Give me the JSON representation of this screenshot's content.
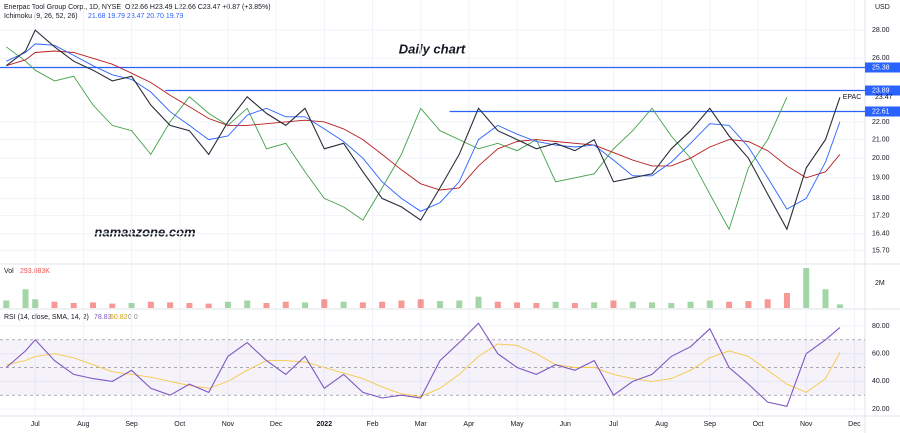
{
  "chart_data": [
    {
      "type": "line",
      "title": "Enerpac Tool Group Corp., 1D, NYSE",
      "ohlc_legend": "O22.66 H23.49 L22.66 C23.47 +0.87 (+3.85%)",
      "indicator": "Ichimoku (9, 26, 52, 26)",
      "indicator_values": "21.68 19.79 23.47 20.70 19.79",
      "annotation": "Daily chart",
      "watermark": "namaazone.com",
      "symbol": "EPAC",
      "currency": "USD",
      "log_scale": true,
      "grid": true,
      "x": [
        -0.6,
        -0.2,
        0,
        0.4,
        0.8,
        1.2,
        1.6,
        2.0,
        2.4,
        2.8,
        3.2,
        3.6,
        4.0,
        4.4,
        4.8,
        5.2,
        5.6,
        6.0,
        6.4,
        6.8,
        7.2,
        7.6,
        8.0,
        8.4,
        8.8,
        9.2,
        9.6,
        10.0,
        10.4,
        10.8,
        11.2,
        11.6,
        12.0,
        12.4,
        12.8,
        13.2,
        13.6,
        14.0,
        14.4,
        14.8,
        15.2,
        15.6,
        16.0,
        16.4,
        16.7
      ],
      "xlim": [
        -0.73,
        17.22
      ],
      "xticks": [
        {
          "value": 0,
          "label": "Jul"
        },
        {
          "value": 1,
          "label": "Aug"
        },
        {
          "value": 2,
          "label": "Sep"
        },
        {
          "value": 3,
          "label": "Oct"
        },
        {
          "value": 4,
          "label": "Nov"
        },
        {
          "value": 5,
          "label": "Dec"
        },
        {
          "value": 6,
          "label": "2022"
        },
        {
          "value": 7,
          "label": "Feb"
        },
        {
          "value": 8,
          "label": "Mar"
        },
        {
          "value": 9,
          "label": "Apr"
        },
        {
          "value": 10,
          "label": "May"
        },
        {
          "value": 11,
          "label": "Jun"
        },
        {
          "value": 12,
          "label": "Jul"
        },
        {
          "value": 13,
          "label": "Aug"
        },
        {
          "value": 14,
          "label": "Sep"
        },
        {
          "value": 15,
          "label": "Oct"
        },
        {
          "value": 16,
          "label": "Nov"
        },
        {
          "value": 17,
          "label": "Dec"
        }
      ],
      "ylim": [
        15.23,
        30.3
      ],
      "yticks": [
        {
          "value": 28,
          "label": "28.00"
        },
        {
          "value": 26,
          "label": "26.00"
        },
        {
          "value": 22,
          "label": "22.00"
        },
        {
          "value": 21,
          "label": "21.00"
        },
        {
          "value": 20,
          "label": "20.00"
        },
        {
          "value": 19,
          "label": "19.00"
        },
        {
          "value": 18,
          "label": "18.00"
        },
        {
          "value": 17.2,
          "label": "17.20"
        },
        {
          "value": 16.4,
          "label": "16.40"
        },
        {
          "value": 15.7,
          "label": "15.70"
        }
      ],
      "series": [
        {
          "name": "Close",
          "color": "#2a2e39",
          "values": [
            25.5,
            26.5,
            28.0,
            26.8,
            25.8,
            25.2,
            24.5,
            24.8,
            23.0,
            21.8,
            21.5,
            20.2,
            22.0,
            23.5,
            22.5,
            21.8,
            22.8,
            20.5,
            20.8,
            19.3,
            18.0,
            17.6,
            17.0,
            18.5,
            20.2,
            22.8,
            21.5,
            21.0,
            20.5,
            20.8,
            20.4,
            21.0,
            18.8,
            19.0,
            19.2,
            20.5,
            21.5,
            22.8,
            21.2,
            20.0,
            18.2,
            16.6,
            19.5,
            21.0,
            23.47
          ]
        },
        {
          "name": "Conversion Line",
          "color": "#2962ff",
          "values": [
            25.8,
            26.4,
            27.0,
            26.9,
            26.2,
            25.5,
            24.9,
            24.6,
            23.8,
            22.6,
            21.8,
            21.0,
            21.2,
            22.4,
            22.8,
            22.3,
            22.3,
            21.6,
            20.9,
            20.0,
            18.8,
            18.0,
            17.4,
            17.8,
            18.8,
            21.0,
            21.8,
            21.3,
            20.9,
            20.7,
            20.6,
            20.7,
            19.9,
            19.1,
            19.1,
            19.8,
            20.8,
            21.9,
            21.8,
            20.6,
            19.0,
            17.5,
            18.0,
            19.8,
            22.0
          ]
        },
        {
          "name": "Base Line",
          "color": "#b71c1c",
          "values": [
            25.5,
            25.9,
            26.4,
            26.5,
            26.4,
            26.0,
            25.6,
            25.0,
            24.4,
            23.6,
            22.9,
            22.2,
            21.8,
            21.8,
            21.9,
            22.0,
            22.1,
            22.0,
            21.6,
            21.0,
            20.2,
            19.4,
            18.7,
            18.4,
            18.5,
            19.6,
            20.5,
            20.9,
            21.0,
            20.9,
            20.8,
            20.7,
            20.3,
            19.9,
            19.6,
            19.6,
            20.0,
            20.6,
            21.0,
            20.9,
            20.4,
            19.6,
            19.0,
            19.3,
            20.2
          ]
        },
        {
          "name": "Lagging Span",
          "color": "#43a047",
          "values": [
            26.8,
            25.8,
            25.2,
            24.5,
            24.8,
            23.0,
            21.8,
            21.5,
            20.2,
            22.0,
            23.5,
            22.5,
            21.8,
            22.8,
            20.5,
            20.8,
            19.3,
            18.0,
            17.6,
            17.0,
            18.5,
            20.2,
            22.8,
            21.5,
            21.0,
            20.5,
            20.8,
            20.4,
            21.0,
            18.8,
            19.0,
            19.2,
            20.5,
            21.5,
            22.8,
            21.2,
            20.0,
            18.2,
            16.6,
            19.5,
            21.0,
            23.47,
            null,
            null,
            null
          ]
        }
      ],
      "levels": [
        {
          "value": 25.38,
          "start": -0.73
        },
        {
          "value": 23.89,
          "start": 2.7
        },
        {
          "value": 22.61,
          "start": 8.6
        }
      ],
      "level_color": "#2962ff"
    },
    {
      "type": "bar",
      "title": "Vol",
      "last_label": "293.883K",
      "up_color": "#66bb6a",
      "down_color": "#ef5350",
      "x": [
        -0.6,
        -0.2,
        0,
        0.4,
        0.8,
        1.2,
        1.6,
        2.0,
        2.4,
        2.8,
        3.2,
        3.6,
        4.0,
        4.4,
        4.8,
        5.2,
        5.6,
        6.0,
        6.4,
        6.8,
        7.2,
        7.6,
        8.0,
        8.4,
        8.8,
        9.2,
        9.6,
        10.0,
        10.4,
        10.8,
        11.2,
        11.6,
        12.0,
        12.4,
        12.8,
        13.2,
        13.6,
        14.0,
        14.4,
        14.8,
        15.2,
        15.6,
        16.0,
        16.4,
        16.7
      ],
      "xlim": [
        -0.73,
        17.22
      ],
      "ylim": [
        0,
        3200000
      ],
      "yticks": [
        {
          "value": 2000000,
          "label": "2M"
        }
      ],
      "values": [
        600000,
        1500000,
        700000,
        500000,
        400000,
        450000,
        350000,
        400000,
        500000,
        450000,
        400000,
        350000,
        500000,
        600000,
        400000,
        500000,
        450000,
        700000,
        500000,
        450000,
        500000,
        600000,
        700000,
        550000,
        600000,
        900000,
        500000,
        450000,
        400000,
        500000,
        400000,
        450000,
        600000,
        500000,
        450000,
        400000,
        500000,
        600000,
        500000,
        550000,
        700000,
        1200000,
        3200000,
        1500000,
        293883
      ]
    },
    {
      "type": "line",
      "title": "RSI (14, close, SMA, 14, 2)",
      "legend_extra": "0 0",
      "band": [
        70,
        50,
        30
      ],
      "band_color": "#7e57c2",
      "x": [
        -0.6,
        -0.2,
        0,
        0.4,
        0.8,
        1.2,
        1.6,
        2.0,
        2.4,
        2.8,
        3.2,
        3.6,
        4.0,
        4.4,
        4.8,
        5.2,
        5.6,
        6.0,
        6.4,
        6.8,
        7.2,
        7.6,
        8.0,
        8.4,
        8.8,
        9.2,
        9.6,
        10.0,
        10.4,
        10.8,
        11.2,
        11.6,
        12.0,
        12.4,
        12.8,
        13.2,
        13.6,
        14.0,
        14.4,
        14.8,
        15.2,
        15.6,
        16.0,
        16.4,
        16.7
      ],
      "xlim": [
        -0.73,
        17.22
      ],
      "ylim": [
        15.7,
        90.1
      ],
      "yticks": [
        {
          "value": 80,
          "label": "80.00"
        },
        {
          "value": 60,
          "label": "60.00"
        },
        {
          "value": 40,
          "label": "40.00"
        },
        {
          "value": 20,
          "label": "20.00"
        }
      ],
      "series": [
        {
          "name": "RSI",
          "color": "#7e57c2",
          "values": [
            50,
            62,
            70,
            55,
            45,
            42,
            40,
            48,
            35,
            30,
            38,
            32,
            58,
            68,
            55,
            45,
            58,
            35,
            45,
            32,
            28,
            30,
            28,
            55,
            68,
            82,
            60,
            50,
            45,
            52,
            48,
            55,
            30,
            40,
            45,
            58,
            65,
            78,
            50,
            38,
            25,
            22,
            60,
            70,
            78.83
          ]
        },
        {
          "name": "SMA",
          "color": "#f7c948",
          "values": [
            52,
            55,
            58,
            60,
            57,
            52,
            47,
            45,
            43,
            40,
            37,
            35,
            40,
            48,
            55,
            55,
            54,
            50,
            46,
            42,
            36,
            31,
            29,
            35,
            45,
            58,
            67,
            66,
            60,
            52,
            50,
            50,
            45,
            42,
            40,
            42,
            48,
            57,
            62,
            58,
            48,
            38,
            32,
            42,
            60.82
          ]
        }
      ]
    }
  ]
}
